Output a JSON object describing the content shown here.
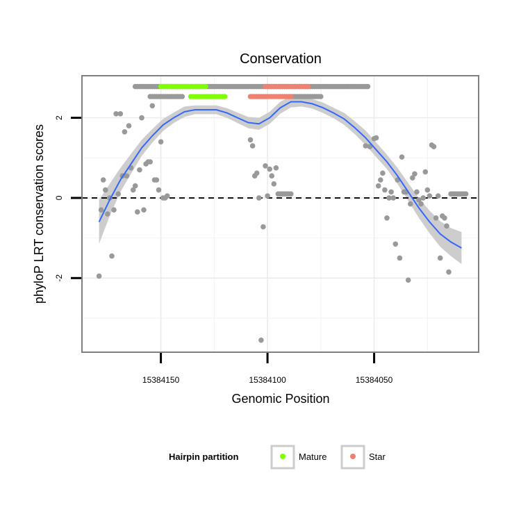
{
  "chart_data": {
    "type": "scatter",
    "title": "Conservation",
    "xlabel": "Genomic Position",
    "ylabel": "phyloP LRT conservation scores",
    "x_reversed": true,
    "xlim": [
      15384187,
      15384001
    ],
    "ylim": [
      -3.85,
      3.05
    ],
    "x_ticks": [
      15384150,
      15384100,
      15384050
    ],
    "x_tick_labels": [
      "15384150",
      "15384100",
      "15384050"
    ],
    "y_ticks": [
      -2,
      0,
      2
    ],
    "y_tick_labels": [
      "-2",
      "0",
      "2"
    ],
    "grid": true,
    "reference_line": {
      "y": 0,
      "style": "dashed"
    },
    "legend": {
      "title": "Hairpin partition",
      "position": "bottom",
      "entries": [
        {
          "label": "Mature",
          "color": "#7fff00"
        },
        {
          "label": "Star",
          "color": "#f08070"
        }
      ]
    },
    "colors": {
      "point": "#999999",
      "mature": "#7fff00",
      "star": "#f08070",
      "smooth": "#3366ff",
      "band": "#c8c8c8"
    },
    "series": [
      {
        "group": "other",
        "x": [
          15384179,
          15384178,
          15384177,
          15384176,
          15384175,
          15384174,
          15384173,
          15384172,
          15384171,
          15384170,
          15384169,
          15384168,
          15384167,
          15384166,
          15384165,
          15384164,
          15384163,
          15384162,
          15384161,
          15384160,
          15384159,
          15384158,
          15384157,
          15384156,
          15384155,
          15384154,
          15384153,
          15384152,
          15384151,
          15384150,
          15384149,
          15384148,
          15384147,
          15384108,
          15384107,
          15384106,
          15384105,
          15384104,
          15384103,
          15384102,
          15384101,
          15384100,
          15384099,
          15384098,
          15384097,
          15384096,
          15384095,
          15384094,
          15384093,
          15384092,
          15384091,
          15384090,
          15384089,
          15384054,
          15384052,
          15384050,
          15384049,
          15384048,
          15384047,
          15384046,
          15384045,
          15384044,
          15384043,
          15384042,
          15384041,
          15384040,
          15384039,
          15384038,
          15384037,
          15384036,
          15384035,
          15384034,
          15384033,
          15384032,
          15384031,
          15384030,
          15384029,
          15384028,
          15384027,
          15384026,
          15384025,
          15384024,
          15384023,
          15384022,
          15384021,
          15384020,
          15384019,
          15384018,
          15384017,
          15384016,
          15384015,
          15384014,
          15384013,
          15384012,
          15384011,
          15384010,
          15384009,
          15384008,
          15384007
        ],
        "y": [
          -1.95,
          -0.3,
          0.45,
          0.2,
          -0.4,
          0.0,
          -1.45,
          -0.3,
          2.1,
          0.1,
          2.1,
          0.55,
          1.65,
          0.55,
          1.8,
          0.75,
          0.2,
          0.3,
          -0.35,
          0.7,
          2.0,
          -0.3,
          0.85,
          0.9,
          0.9,
          2.3,
          0.45,
          0.45,
          0.2,
          1.4,
          0.0,
          0.0,
          0.05,
          1.45,
          1.3,
          0.55,
          0.62,
          0.0,
          -3.55,
          -0.72,
          0.8,
          0.05,
          0.72,
          0.55,
          0.35,
          0.75,
          0.1,
          0.1,
          0.1,
          0.1,
          0.1,
          0.1,
          0.1,
          1.3,
          1.28,
          1.48,
          1.5,
          0.3,
          0.45,
          0.62,
          0.2,
          -0.5,
          0.0,
          0.15,
          0.0,
          -1.15,
          0.45,
          -1.5,
          1.02,
          0.15,
          0.15,
          -2.05,
          -0.15,
          0.5,
          0.6,
          0.15,
          -0.05,
          -0.15,
          0.0,
          0.65,
          0.2,
          0.05,
          1.32,
          1.28,
          -0.5,
          0.05,
          -1.5,
          -0.45,
          -0.5,
          -0.7,
          -1.85,
          0.1,
          0.1,
          0.1,
          0.1,
          0.1,
          0.1,
          0.1,
          0.1
        ]
      },
      {
        "group": "loop-top",
        "x": [
          15384162,
          15384161,
          15384160,
          15384159,
          15384158,
          15384157,
          15384156,
          15384155,
          15384154,
          15384153,
          15384152,
          15384151,
          15384150,
          15384149,
          15384148,
          15384147,
          15384146,
          15384145,
          15384144,
          15384143,
          15384142,
          15384141,
          15384140,
          15384139,
          15384138,
          15384137,
          15384136,
          15384135,
          15384134,
          15384133,
          15384132,
          15384131,
          15384130,
          15384129,
          15384128,
          15384127,
          15384126,
          15384125,
          15384124,
          15384123,
          15384122,
          15384121,
          15384120,
          15384119,
          15384118,
          15384117,
          15384116,
          15384115,
          15384114,
          15384113,
          15384112,
          15384111,
          15384110,
          15384109,
          15384108,
          15384107,
          15384106,
          15384105,
          15384104,
          15384103,
          15384102,
          15384101,
          15384100,
          15384099,
          15384098,
          15384097,
          15384096,
          15384095,
          15384094,
          15384093,
          15384092,
          15384091,
          15384090,
          15384089,
          15384088,
          15384087,
          15384086,
          15384085,
          15384084,
          15384083,
          15384082,
          15384081,
          15384080,
          15384079,
          15384078,
          15384077,
          15384076,
          15384075,
          15384074,
          15384073,
          15384072,
          15384071,
          15384070,
          15384069,
          15384068,
          15384067,
          15384066,
          15384065,
          15384064,
          15384063,
          15384062,
          15384061,
          15384060,
          15384059,
          15384058,
          15384057,
          15384056,
          15384055,
          15384054,
          15384053
        ],
        "y": [
          2.78,
          2.78,
          2.78,
          2.78,
          2.78,
          2.78,
          2.78,
          2.78,
          2.78,
          2.78,
          2.78,
          2.78,
          2.78,
          2.78,
          2.78,
          2.78,
          2.78,
          2.78,
          2.78,
          2.78,
          2.78,
          2.78,
          2.78,
          2.78,
          2.78,
          2.78,
          2.78,
          2.78,
          2.78,
          2.78,
          2.78,
          2.78,
          2.78,
          2.78,
          2.78,
          2.78,
          2.78,
          2.78,
          2.78,
          2.78,
          2.78,
          2.78,
          2.78,
          2.78,
          2.78,
          2.78,
          2.78,
          2.78,
          2.78,
          2.78,
          2.78,
          2.78,
          2.78,
          2.78,
          2.78,
          2.78,
          2.78,
          2.78,
          2.78,
          2.78,
          2.78,
          2.78,
          2.78,
          2.78,
          2.78,
          2.78,
          2.78,
          2.78,
          2.78,
          2.78,
          2.78,
          2.78,
          2.78,
          2.78,
          2.78,
          2.78,
          2.78,
          2.78,
          2.78,
          2.78,
          2.78,
          2.78,
          2.78,
          2.78,
          2.78,
          2.78,
          2.78,
          2.78,
          2.78,
          2.78,
          2.78,
          2.78,
          2.78,
          2.78,
          2.78,
          2.78,
          2.78,
          2.78,
          2.78,
          2.78,
          2.78,
          2.78,
          2.78,
          2.78,
          2.78,
          2.78,
          2.78,
          2.78,
          2.78,
          2.78
        ]
      },
      {
        "group": "mature",
        "x": [
          15384150,
          15384149,
          15384148,
          15384147,
          15384146,
          15384145,
          15384144,
          15384143,
          15384142,
          15384141,
          15384140,
          15384139,
          15384138,
          15384137,
          15384136,
          15384135,
          15384134,
          15384133,
          15384132,
          15384131,
          15384130,
          15384129
        ],
        "y": [
          2.78,
          2.78,
          2.78,
          2.78,
          2.78,
          2.78,
          2.78,
          2.78,
          2.78,
          2.78,
          2.78,
          2.78,
          2.78,
          2.78,
          2.78,
          2.78,
          2.78,
          2.78,
          2.78,
          2.78,
          2.78,
          2.78
        ]
      },
      {
        "group": "star",
        "x": [
          15384101,
          15384100,
          15384099,
          15384098,
          15384097,
          15384096,
          15384095,
          15384094,
          15384093,
          15384092,
          15384091,
          15384090,
          15384089,
          15384088,
          15384087,
          15384086,
          15384085,
          15384084,
          15384083,
          15384082,
          15384081
        ],
        "y": [
          2.78,
          2.78,
          2.78,
          2.78,
          2.78,
          2.78,
          2.78,
          2.78,
          2.78,
          2.78,
          2.78,
          2.78,
          2.78,
          2.78,
          2.78,
          2.78,
          2.78,
          2.78,
          2.78,
          2.78,
          2.78
        ]
      },
      {
        "group": "pairing-row-other",
        "x": [
          15384155,
          15384154,
          15384153,
          15384152,
          15384151,
          15384150,
          15384149,
          15384148,
          15384147,
          15384146,
          15384145,
          15384144,
          15384143,
          15384142,
          15384141,
          15384140,
          15384088,
          15384087,
          15384086,
          15384085,
          15384084,
          15384083,
          15384082,
          15384081,
          15384080,
          15384079,
          15384078,
          15384077,
          15384076,
          15384075
        ],
        "y": [
          2.53,
          2.53,
          2.53,
          2.53,
          2.53,
          2.53,
          2.53,
          2.53,
          2.53,
          2.53,
          2.53,
          2.53,
          2.53,
          2.53,
          2.53,
          2.53,
          2.53,
          2.53,
          2.53,
          2.53,
          2.53,
          2.53,
          2.53,
          2.53,
          2.53,
          2.53,
          2.53,
          2.53,
          2.53,
          2.53
        ]
      },
      {
        "group": "pairing-row-mature",
        "x": [
          15384136,
          15384135,
          15384134,
          15384133,
          15384132,
          15384131,
          15384130,
          15384129,
          15384128,
          15384127,
          15384126,
          15384125,
          15384124,
          15384123,
          15384122,
          15384121,
          15384120
        ],
        "y": [
          2.53,
          2.53,
          2.53,
          2.53,
          2.53,
          2.53,
          2.53,
          2.53,
          2.53,
          2.53,
          2.53,
          2.53,
          2.53,
          2.53,
          2.53,
          2.53,
          2.53
        ]
      },
      {
        "group": "pairing-row-star",
        "x": [
          15384108,
          15384107,
          15384106,
          15384105,
          15384104,
          15384103,
          15384102,
          15384101,
          15384100,
          15384099,
          15384098,
          15384097,
          15384096,
          15384095,
          15384094,
          15384093,
          15384092,
          15384091,
          15384090,
          15384089
        ],
        "y": [
          2.53,
          2.53,
          2.53,
          2.53,
          2.53,
          2.53,
          2.53,
          2.53,
          2.53,
          2.53,
          2.53,
          2.53,
          2.53,
          2.53,
          2.53,
          2.53,
          2.53,
          2.53,
          2.53,
          2.53
        ]
      }
    ],
    "smooth": {
      "x": [
        15384179,
        15384174,
        15384169,
        15384164,
        15384159,
        15384154,
        15384149,
        15384144,
        15384139,
        15384134,
        15384129,
        15384124,
        15384119,
        15384114,
        15384109,
        15384104,
        15384099,
        15384094,
        15384089,
        15384084,
        15384079,
        15384074,
        15384069,
        15384064,
        15384059,
        15384054,
        15384049,
        15384044,
        15384039,
        15384034,
        15384029,
        15384024,
        15384019,
        15384014,
        15384009
      ],
      "y": [
        -0.6,
        -0.05,
        0.45,
        0.85,
        1.25,
        1.55,
        1.82,
        2.0,
        2.15,
        2.2,
        2.2,
        2.2,
        2.12,
        2.0,
        1.88,
        1.85,
        2.0,
        2.25,
        2.4,
        2.4,
        2.35,
        2.25,
        2.12,
        1.97,
        1.75,
        1.5,
        1.2,
        0.9,
        0.55,
        0.15,
        -0.25,
        -0.6,
        -0.9,
        -1.1,
        -1.25
      ],
      "se_lower": [
        -1.15,
        -0.45,
        0.15,
        0.6,
        1.05,
        1.38,
        1.67,
        1.87,
        2.02,
        2.09,
        2.09,
        2.09,
        2.0,
        1.87,
        1.74,
        1.7,
        1.85,
        2.1,
        2.26,
        2.28,
        2.23,
        2.12,
        1.99,
        1.82,
        1.59,
        1.32,
        1.02,
        0.72,
        0.35,
        -0.07,
        -0.5,
        -0.88,
        -1.22,
        -1.45,
        -1.65
      ],
      "se_upper": [
        -0.05,
        0.35,
        0.75,
        1.1,
        1.45,
        1.72,
        1.97,
        2.13,
        2.28,
        2.31,
        2.31,
        2.31,
        2.24,
        2.13,
        2.02,
        2.0,
        2.15,
        2.4,
        2.54,
        2.52,
        2.47,
        2.38,
        2.25,
        2.12,
        1.91,
        1.68,
        1.38,
        1.08,
        0.75,
        0.37,
        0.0,
        -0.32,
        -0.58,
        -0.75,
        -0.85
      ]
    }
  }
}
